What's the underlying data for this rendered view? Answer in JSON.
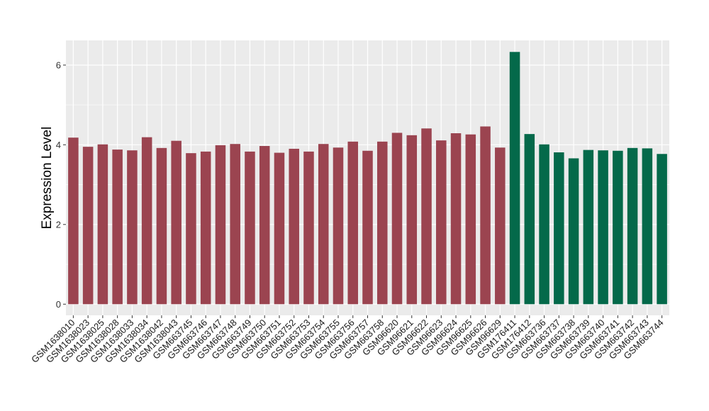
{
  "chart_data": {
    "type": "bar",
    "title": "",
    "xlabel": "",
    "ylabel": "Expression Level",
    "ylim": [
      -0.28,
      6.62
    ],
    "yticks": [
      0,
      2,
      4,
      6
    ],
    "grid": true,
    "colors": {
      "group1": "#9b4450",
      "group2": "#04694a",
      "panel": "#ebebeb",
      "grid": "#ffffff"
    },
    "categories": [
      "GSM1638010",
      "GSM1638023",
      "GSM1638025",
      "GSM1638028",
      "GSM1638033",
      "GSM1638034",
      "GSM1638042",
      "GSM1638043",
      "GSM663745",
      "GSM663746",
      "GSM663747",
      "GSM663748",
      "GSM663749",
      "GSM663750",
      "GSM663751",
      "GSM663752",
      "GSM663753",
      "GSM663754",
      "GSM663755",
      "GSM663756",
      "GSM663757",
      "GSM663758",
      "GSM96620",
      "GSM96621",
      "GSM96622",
      "GSM96623",
      "GSM96624",
      "GSM96625",
      "GSM96626",
      "GSM96629",
      "GSM176411",
      "GSM176412",
      "GSM663736",
      "GSM663737",
      "GSM663738",
      "GSM663739",
      "GSM663740",
      "GSM663741",
      "GSM663742",
      "GSM663743",
      "GSM663744"
    ],
    "values": [
      4.18,
      3.95,
      4.01,
      3.88,
      3.86,
      4.19,
      3.92,
      4.1,
      3.79,
      3.83,
      3.99,
      4.02,
      3.83,
      3.97,
      3.8,
      3.9,
      3.83,
      4.02,
      3.93,
      4.08,
      3.85,
      4.08,
      4.3,
      4.24,
      4.41,
      4.11,
      4.29,
      4.26,
      4.46,
      3.93,
      6.33,
      4.27,
      4.01,
      3.81,
      3.66,
      3.87,
      3.86,
      3.85,
      3.92,
      3.91,
      3.77
    ],
    "groups": [
      1,
      1,
      1,
      1,
      1,
      1,
      1,
      1,
      1,
      1,
      1,
      1,
      1,
      1,
      1,
      1,
      1,
      1,
      1,
      1,
      1,
      1,
      1,
      1,
      1,
      1,
      1,
      1,
      1,
      1,
      2,
      2,
      2,
      2,
      2,
      2,
      2,
      2,
      2,
      2,
      2
    ]
  }
}
